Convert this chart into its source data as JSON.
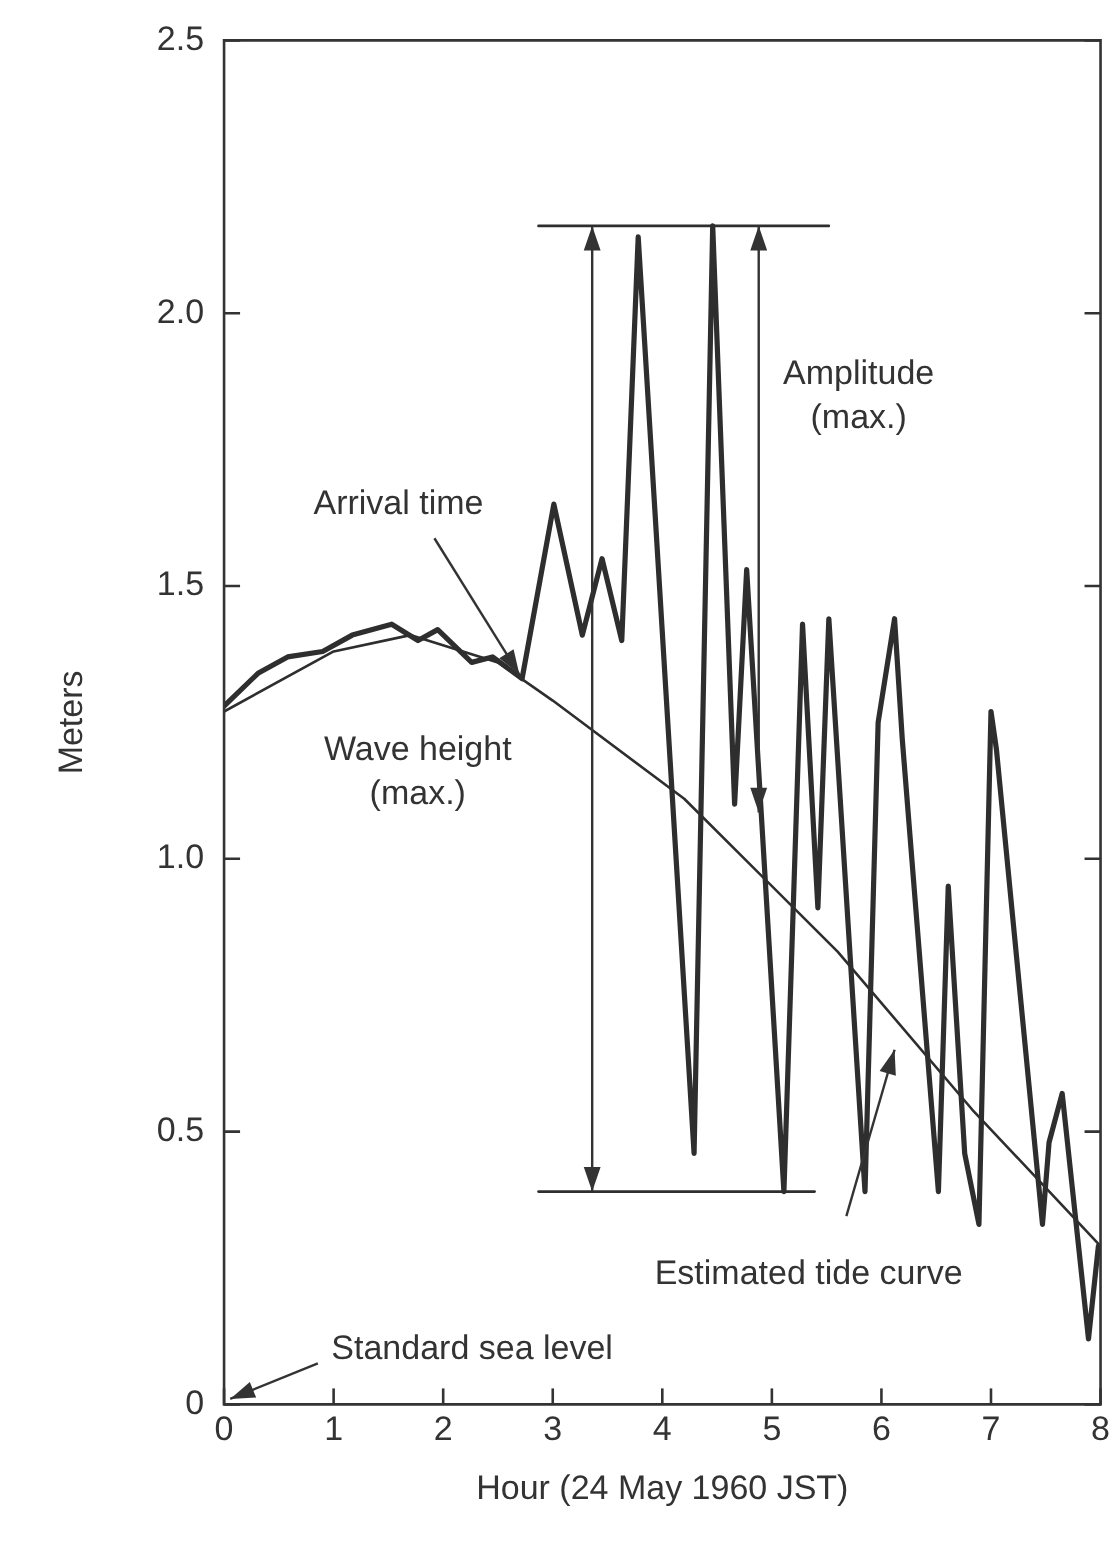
{
  "chart_data": {
    "type": "line",
    "xlabel": "Hour (24 May 1960 JST)",
    "ylabel": "Meters",
    "xlim": [
      0,
      8
    ],
    "xticks": [
      0,
      1,
      2,
      3,
      4,
      5,
      6,
      7,
      8
    ],
    "ylim": [
      0,
      2.5
    ],
    "yticks": [
      0,
      0.5,
      {
        "value": 1,
        "label": "1.0"
      },
      1.5,
      {
        "value": 2,
        "label": "2.0"
      },
      2.5
    ],
    "grid": false,
    "legend": false,
    "marker": "none",
    "series": [
      {
        "color": "#2e2e2e",
        "x": [
          0,
          0.31,
          0.58,
          0.9,
          1.17,
          1.53,
          1.77,
          1.95,
          2.26,
          2.45,
          2.72,
          3.01,
          3.27,
          3.45,
          3.63,
          3.78,
          4.29,
          4.46,
          4.66,
          4.77,
          5.11,
          5.28,
          5.42,
          5.52,
          5.85,
          5.97,
          6.12,
          6.19,
          6.52,
          6.61,
          6.76,
          6.89,
          7.0,
          7.05,
          7.47,
          7.53,
          7.65,
          7.89,
          7.98
        ],
        "values": [
          1.28,
          1.34,
          1.37,
          1.38,
          1.41,
          1.43,
          1.4,
          1.42,
          1.36,
          1.37,
          1.33,
          1.65,
          1.41,
          1.55,
          1.4,
          2.14,
          0.46,
          2.16,
          1.1,
          1.53,
          0.39,
          1.43,
          0.91,
          1.44,
          0.39,
          1.25,
          1.44,
          1.22,
          0.39,
          0.95,
          0.46,
          0.33,
          1.27,
          1.2,
          0.33,
          0.48,
          0.57,
          0.12,
          0.29
        ]
      },
      {
        "color": "#2e2e2e",
        "x": [
          0,
          1,
          1.7,
          2.5,
          3,
          4.2,
          5.6,
          6.83,
          8
        ],
        "values": [
          1.27,
          1.38,
          1.41,
          1.36,
          1.29,
          1.11,
          0.83,
          0.54,
          0.29
        ],
        "line_style": "solid"
      },
      {
        "color": "#2e2e2e",
        "x": [
          2.87,
          5.52
        ],
        "values": [
          2.16,
          2.16
        ]
      },
      {
        "color": "#2e2e2e",
        "x": [
          2.87,
          5.39
        ],
        "values": [
          0.39,
          0.39
        ]
      }
    ],
    "annotations": [
      {
        "text": "Arrival time",
        "x": 2.72,
        "y": 1.33
      },
      "Amplitude (max.)",
      "Wave height (max.)",
      "Estimated tide curve",
      "Standard sea level"
    ]
  }
}
